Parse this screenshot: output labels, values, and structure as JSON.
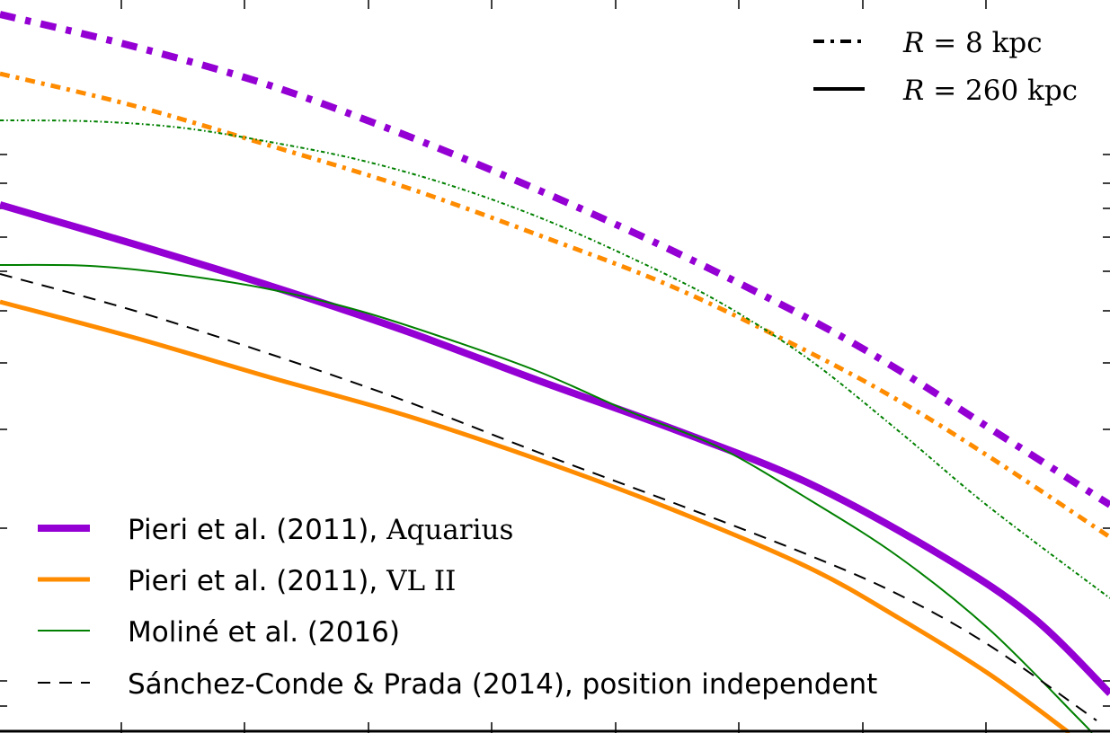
{
  "chart_data": {
    "type": "line",
    "x_range": [
      0,
      1235
    ],
    "y_range": [
      0,
      816
    ],
    "x_ticks": [
      135,
      272,
      410,
      547,
      685,
      822,
      960,
      1097
    ],
    "y_ticks": [
      172,
      204,
      232,
      264,
      302,
      346,
      404,
      478,
      588,
      758,
      786
    ],
    "series": [
      {
        "name_parts": [
          "Pieri et al. (2011), ",
          "Aquarius"
        ],
        "color": "#9400d3",
        "width": 8,
        "style": "solid",
        "R_label": "R = 260 kpc",
        "points": [
          [
            0,
            228
          ],
          [
            150,
            272
          ],
          [
            300,
            318
          ],
          [
            450,
            368
          ],
          [
            600,
            424
          ],
          [
            750,
            478
          ],
          [
            900,
            538
          ],
          [
            1050,
            620
          ],
          [
            1150,
            688
          ],
          [
            1235,
            772
          ]
        ]
      },
      {
        "name_parts": [
          "Pieri et al. (2011), ",
          "VL II"
        ],
        "color": "#ff8c00",
        "width": 5,
        "style": "solid",
        "points": [
          [
            0,
            336
          ],
          [
            150,
            376
          ],
          [
            300,
            420
          ],
          [
            450,
            462
          ],
          [
            600,
            512
          ],
          [
            750,
            568
          ],
          [
            900,
            632
          ],
          [
            1000,
            688
          ],
          [
            1100,
            750
          ],
          [
            1190,
            816
          ]
        ]
      },
      {
        "name_parts": [
          "Moliné et al. (2016)"
        ],
        "color": "#008000",
        "width": 2,
        "style": "solid",
        "points": [
          [
            0,
            295
          ],
          [
            100,
            296
          ],
          [
            200,
            306
          ],
          [
            300,
            322
          ],
          [
            400,
            346
          ],
          [
            500,
            378
          ],
          [
            600,
            414
          ],
          [
            700,
            458
          ],
          [
            800,
            498
          ],
          [
            900,
            556
          ],
          [
            1000,
            620
          ],
          [
            1100,
            700
          ],
          [
            1200,
            800
          ],
          [
            1215,
            816
          ]
        ]
      },
      {
        "name_parts": [
          "Sánchez-Conde & Prada (2014), position independent"
        ],
        "color": "#000000",
        "width": 2,
        "style": "dashed",
        "points": [
          [
            0,
            305
          ],
          [
            150,
            346
          ],
          [
            300,
            394
          ],
          [
            450,
            446
          ],
          [
            600,
            504
          ],
          [
            750,
            560
          ],
          [
            900,
            618
          ],
          [
            1000,
            662
          ],
          [
            1100,
            718
          ],
          [
            1220,
            802
          ]
        ]
      },
      {
        "name_parts": [
          "Pieri et al. (2011), Aquarius, R = 8 kpc"
        ],
        "color": "#9400d3",
        "width": 8,
        "style": "dashdot",
        "legend": false,
        "points": [
          [
            0,
            16
          ],
          [
            150,
            52
          ],
          [
            300,
            95
          ],
          [
            450,
            150
          ],
          [
            600,
            212
          ],
          [
            750,
            280
          ],
          [
            900,
            355
          ],
          [
            1000,
            412
          ],
          [
            1100,
            476
          ],
          [
            1235,
            562
          ]
        ]
      },
      {
        "name_parts": [
          "Pieri et al. (2011), VL II, R = 8 kpc"
        ],
        "color": "#ff8c00",
        "width": 5,
        "style": "dashdot",
        "legend": false,
        "points": [
          [
            0,
            82
          ],
          [
            150,
            118
          ],
          [
            300,
            162
          ],
          [
            450,
            208
          ],
          [
            600,
            262
          ],
          [
            750,
            320
          ],
          [
            900,
            392
          ],
          [
            1000,
            446
          ],
          [
            1100,
            508
          ],
          [
            1235,
            598
          ]
        ]
      },
      {
        "name_parts": [
          "Moliné et al. (2016), R = 8 kpc"
        ],
        "color": "#008000",
        "width": 2,
        "style": "dashdot",
        "legend": false,
        "points": [
          [
            0,
            134
          ],
          [
            100,
            135
          ],
          [
            200,
            142
          ],
          [
            300,
            158
          ],
          [
            400,
            178
          ],
          [
            500,
            206
          ],
          [
            600,
            242
          ],
          [
            700,
            286
          ],
          [
            800,
            336
          ],
          [
            900,
            400
          ],
          [
            1000,
            480
          ],
          [
            1100,
            564
          ],
          [
            1235,
            666
          ]
        ]
      }
    ],
    "R_legend": [
      {
        "style": "dashdot",
        "label_parts": [
          "R",
          " = 8 kpc"
        ]
      },
      {
        "style": "solid",
        "label_parts": [
          "R",
          " = 260 kpc"
        ]
      }
    ]
  }
}
